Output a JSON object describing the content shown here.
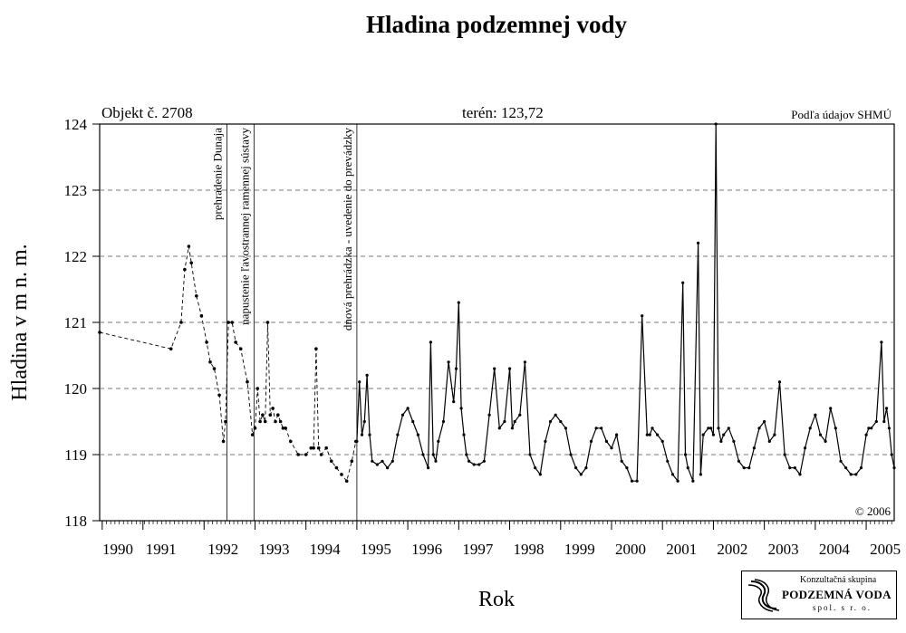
{
  "chart_data": {
    "type": "line",
    "title": "Hladina podzemnej vody",
    "object_label": "Objekt č. 2708",
    "terrain_label": "terén: 123,72",
    "source_label": "Podľa údajov SHMÚ",
    "copyright": "© 2006",
    "xlabel": "Rok",
    "ylabel": "Hladina v m n. m.",
    "ylim": [
      118,
      124
    ],
    "xlim": [
      1989.95,
      2005.55
    ],
    "grid": "horizontal dashed",
    "y_ticks": [
      "118",
      "119",
      "120",
      "121",
      "122",
      "123",
      "124"
    ],
    "x_ticks": [
      {
        "label": "1990",
        "at": 1990.0
      },
      {
        "label": "1991",
        "at": 1990.8
      },
      {
        "label": "1992",
        "at": 1992
      },
      {
        "label": "1993",
        "at": 1993
      },
      {
        "label": "1994",
        "at": 1994
      },
      {
        "label": "1995",
        "at": 1995
      },
      {
        "label": "1996",
        "at": 1996
      },
      {
        "label": "1997",
        "at": 1997
      },
      {
        "label": "1998",
        "at": 1998
      },
      {
        "label": "1999",
        "at": 1999
      },
      {
        "label": "2000",
        "at": 2000
      },
      {
        "label": "2001",
        "at": 2001
      },
      {
        "label": "2002",
        "at": 2002
      },
      {
        "label": "2003",
        "at": 2003
      },
      {
        "label": "2004",
        "at": 2004
      },
      {
        "label": "2005",
        "at": 2005
      }
    ],
    "events": [
      {
        "x": 1992.45,
        "label": "prehradenie Dunaja"
      },
      {
        "x": 1992.98,
        "label": "napustenie ľavostrannej ramennej sústavy"
      },
      {
        "x": 1995.0,
        "label": "dnová prehrádzka - uvedenie do prevádzky"
      }
    ],
    "series": [
      {
        "style": "dashed",
        "x": [
          1989.95,
          1991.35,
          1991.55,
          1991.62,
          1991.7,
          1991.75,
          1991.85,
          1991.95,
          1992.05,
          1992.12,
          1992.2,
          1992.3,
          1992.38,
          1992.42,
          1992.48,
          1992.55,
          1992.62,
          1992.72,
          1992.85,
          1992.95,
          1993.0,
          1993.05,
          1993.1,
          1993.15,
          1993.2,
          1993.25,
          1993.3,
          1993.35,
          1993.4,
          1993.45,
          1993.5,
          1993.55,
          1993.6,
          1993.7,
          1993.85,
          1994.0,
          1994.1,
          1994.15,
          1994.2,
          1994.25,
          1994.3,
          1994.4,
          1994.5,
          1994.6,
          1994.7,
          1994.8,
          1994.9,
          1994.98
        ],
        "y": [
          120.85,
          120.6,
          121.0,
          121.8,
          122.15,
          121.9,
          121.4,
          121.1,
          120.7,
          120.4,
          120.3,
          119.9,
          119.2,
          119.5,
          121.0,
          121.0,
          120.7,
          120.6,
          120.1,
          119.3,
          119.4,
          120.0,
          119.5,
          119.6,
          119.5,
          121.0,
          119.6,
          119.7,
          119.5,
          119.6,
          119.5,
          119.4,
          119.4,
          119.2,
          119.0,
          119.0,
          119.1,
          119.1,
          120.6,
          119.1,
          119.0,
          119.1,
          118.9,
          118.8,
          118.7,
          118.6,
          118.9,
          119.2
        ]
      },
      {
        "style": "solid-dotted",
        "x": [
          1995.0,
          1995.05,
          1995.1,
          1995.15,
          1995.2,
          1995.25,
          1995.3,
          1995.4,
          1995.5,
          1995.6,
          1995.7,
          1995.8,
          1995.9,
          1996.0,
          1996.1,
          1996.2,
          1996.3,
          1996.4,
          1996.45,
          1996.5,
          1996.55,
          1996.6,
          1996.7,
          1996.8,
          1996.9,
          1996.95,
          1997.0,
          1997.05,
          1997.1,
          1997.15,
          1997.2,
          1997.3,
          1997.4,
          1997.5,
          1997.6,
          1997.7,
          1997.8,
          1997.9,
          1998.0,
          1998.05,
          1998.1,
          1998.2,
          1998.3,
          1998.4,
          1998.5,
          1998.6,
          1998.7,
          1998.8,
          1998.9,
          1999.0,
          1999.1,
          1999.2,
          1999.3,
          1999.4,
          1999.5,
          1999.6,
          1999.7,
          1999.8,
          1999.9,
          2000.0,
          2000.1,
          2000.2,
          2000.3,
          2000.4,
          2000.5,
          2000.6,
          2000.7,
          2000.75,
          2000.8,
          2000.9,
          2001.0,
          2001.1,
          2001.2,
          2001.3,
          2001.4,
          2001.45,
          2001.5,
          2001.6,
          2001.7,
          2001.75,
          2001.8,
          2001.9,
          2001.95,
          2002.0,
          2002.05,
          2002.1,
          2002.15,
          2002.2,
          2002.3,
          2002.4,
          2002.5,
          2002.6,
          2002.7,
          2002.8,
          2002.9,
          2003.0,
          2003.1,
          2003.2,
          2003.3,
          2003.4,
          2003.5,
          2003.6,
          2003.7,
          2003.8,
          2003.9,
          2004.0,
          2004.1,
          2004.2,
          2004.3,
          2004.4,
          2004.5,
          2004.6,
          2004.7,
          2004.8,
          2004.9,
          2005.0,
          2005.05,
          2005.1,
          2005.2,
          2005.3,
          2005.35,
          2005.4,
          2005.45,
          2005.5,
          2005.55
        ],
        "y": [
          119.2,
          120.1,
          119.3,
          119.5,
          120.2,
          119.3,
          118.9,
          118.85,
          118.9,
          118.8,
          118.9,
          119.3,
          119.6,
          119.7,
          119.5,
          119.3,
          119.0,
          118.8,
          120.7,
          119.0,
          118.9,
          119.2,
          119.5,
          120.4,
          119.8,
          120.3,
          121.3,
          119.7,
          119.3,
          119.0,
          118.9,
          118.85,
          118.85,
          118.9,
          119.6,
          120.3,
          119.4,
          119.5,
          120.3,
          119.4,
          119.5,
          119.6,
          120.4,
          119.0,
          118.8,
          118.7,
          119.2,
          119.5,
          119.6,
          119.5,
          119.4,
          119.0,
          118.8,
          118.7,
          118.8,
          119.2,
          119.4,
          119.4,
          119.2,
          119.1,
          119.3,
          118.9,
          118.8,
          118.6,
          118.6,
          121.1,
          119.3,
          119.3,
          119.4,
          119.3,
          119.2,
          118.9,
          118.7,
          118.6,
          121.6,
          119.0,
          118.8,
          118.6,
          122.2,
          118.7,
          119.3,
          119.4,
          119.4,
          119.3,
          124.0,
          119.4,
          119.2,
          119.3,
          119.4,
          119.2,
          118.9,
          118.8,
          118.8,
          119.1,
          119.4,
          119.5,
          119.2,
          119.3,
          120.1,
          119.0,
          118.8,
          118.8,
          118.7,
          119.1,
          119.4,
          119.6,
          119.3,
          119.2,
          119.7,
          119.4,
          118.9,
          118.8,
          118.7,
          118.7,
          118.8,
          119.3,
          119.4,
          119.4,
          119.5,
          120.7,
          119.5,
          119.7,
          119.4,
          119.0,
          118.8
        ]
      }
    ]
  },
  "logo": {
    "line1": "Konzultačná skupina",
    "line2": "PODZEMNÁ VODA",
    "line3": "spol. s r. o."
  }
}
